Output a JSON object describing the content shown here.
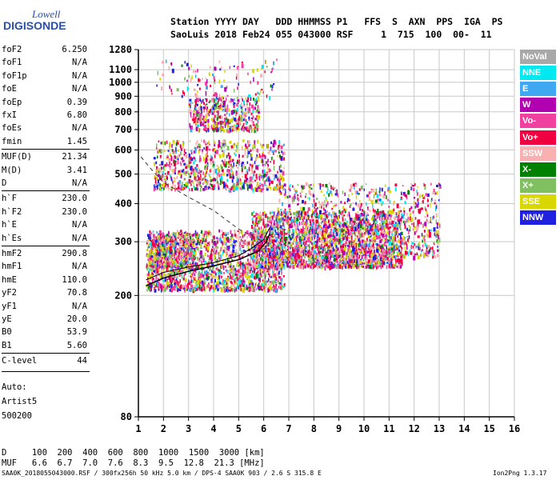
{
  "logo": {
    "line1": "Lowell",
    "line2": "DIGISONDE"
  },
  "header": {
    "line1": "Station YYYY DAY   DDD HHMMSS P1   FFS  S  AXN  PPS  IGA  PS",
    "line2": "SaoLuis 2018 Feb24 055 043000 RSF     1  715  100  00-  11"
  },
  "params": [
    {
      "name": "foF2",
      "value": "6.250"
    },
    {
      "name": "foF1",
      "value": "N/A"
    },
    {
      "name": "foF1p",
      "value": "N/A"
    },
    {
      "name": "foE",
      "value": "N/A"
    },
    {
      "name": "foEp",
      "value": "0.39"
    },
    {
      "name": "fxI",
      "value": "6.80"
    },
    {
      "name": "foEs",
      "value": "N/A"
    },
    {
      "name": "fmin",
      "value": "1.45"
    },
    {
      "name": "MUF(D)",
      "value": "21.34"
    },
    {
      "name": "M(D)",
      "value": "3.41"
    },
    {
      "name": "D",
      "value": "N/A"
    },
    {
      "name": "h`F",
      "value": "230.0"
    },
    {
      "name": "h`F2",
      "value": "230.0"
    },
    {
      "name": "h`E",
      "value": "N/A"
    },
    {
      "name": "h`Es",
      "value": "N/A"
    },
    {
      "name": "hmF2",
      "value": "290.8"
    },
    {
      "name": "hmF1",
      "value": "N/A"
    },
    {
      "name": "hmE",
      "value": "110.0"
    },
    {
      "name": "yF2",
      "value": "70.8"
    },
    {
      "name": "yF1",
      "value": "N/A"
    },
    {
      "name": "yE",
      "value": "20.0"
    },
    {
      "name": "B0",
      "value": "53.9"
    },
    {
      "name": "B1",
      "value": "5.60"
    },
    {
      "name": "C-level",
      "value": "44"
    }
  ],
  "auto": {
    "line1": "Auto:",
    "line2": "Artist5",
    "line3": "500200"
  },
  "legend": [
    {
      "label": "NoVal",
      "color": "#a8a8a8"
    },
    {
      "label": "NNE",
      "color": "#00e8f0"
    },
    {
      "label": "E",
      "color": "#40a8f0"
    },
    {
      "label": "W",
      "color": "#b000b0"
    },
    {
      "label": "Vo-",
      "color": "#f040a0"
    },
    {
      "label": "Vo+",
      "color": "#f00040"
    },
    {
      "label": "SSW",
      "color": "#f8b0b0"
    },
    {
      "label": "X-",
      "color": "#008000"
    },
    {
      "label": "X+",
      "color": "#80c060"
    },
    {
      "label": "SSE",
      "color": "#d8d800"
    },
    {
      "label": "NNW",
      "color": "#2020e0"
    }
  ],
  "footer": {
    "d_row": "D     100  200  400  600  800  1000  1500  3000 [km]",
    "muf_row": "MUF   6.6  6.7  7.0  7.6  8.3  9.5  12.8  21.3 [MHz]",
    "note": "SAA0K_2018055043000.RSF / 300fx256h 50 kHz 5.0 km / DPS-4 SAA0K 903 / 2.6 S 315.8 E",
    "version": "Ion2Png 1.3.17"
  },
  "chart_data": {
    "type": "scatter",
    "xlim": [
      1,
      16
    ],
    "ylim": [
      80,
      1280
    ],
    "y_scale": "log",
    "xticks": [
      1,
      2,
      3,
      4,
      5,
      6,
      7,
      8,
      9,
      10,
      11,
      12,
      13,
      14,
      15,
      16
    ],
    "yticks": [
      80,
      200,
      300,
      400,
      500,
      600,
      700,
      800,
      900,
      1000,
      1100,
      1280
    ],
    "grid": true,
    "legend_position": "right",
    "regions": [
      {
        "mode": "o-trace F2 low",
        "x": [
          1.3,
          6.8
        ],
        "y": [
          210,
          330
        ],
        "density": 1800
      },
      {
        "mode": "x-trace F2 dense",
        "x": [
          5.5,
          11.5
        ],
        "y": [
          250,
          380
        ],
        "density": 2200
      },
      {
        "mode": "F2 spread",
        "x": [
          6.5,
          13
        ],
        "y": [
          270,
          470
        ],
        "density": 1100
      },
      {
        "mode": "2nd hop",
        "x": [
          1.6,
          6.8
        ],
        "y": [
          450,
          650
        ],
        "density": 900
      },
      {
        "mode": "3rd hop",
        "x": [
          3,
          5.8
        ],
        "y": [
          700,
          900
        ],
        "density": 500
      },
      {
        "mode": "E-region low",
        "x": [
          1.4,
          3.2
        ],
        "y": [
          250,
          320
        ],
        "density": 500
      },
      {
        "mode": "sparse high",
        "x": [
          1.7,
          6.5
        ],
        "y": [
          900,
          1200
        ],
        "density": 120
      }
    ],
    "fitted_profile_x": [
      1.3,
      2,
      3,
      4,
      5,
      5.8,
      6.1,
      6.25
    ],
    "fitted_profile_y": [
      215,
      228,
      240,
      250,
      262,
      280,
      300,
      320
    ],
    "virtual_trace_x": [
      1.3,
      2,
      3,
      4,
      5,
      5.5,
      6,
      6.25
    ],
    "virtual_trace_y": [
      225,
      238,
      248,
      256,
      270,
      285,
      305,
      335
    ],
    "dashed_curve_x": [
      1.1,
      1.5,
      2,
      3,
      4,
      5,
      6
    ],
    "dashed_curve_y": [
      570,
      520,
      470,
      420,
      380,
      330,
      300
    ]
  }
}
